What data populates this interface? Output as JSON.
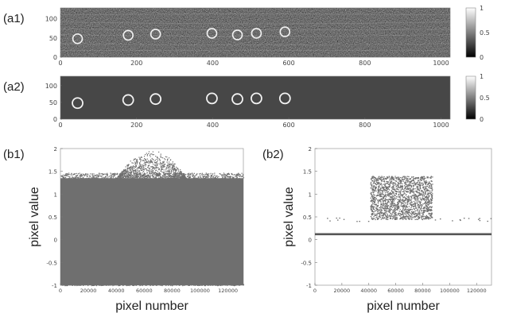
{
  "chart_data": [
    {
      "id": "a1",
      "panel_label": "(a1)",
      "type": "heatmap",
      "xlim": [
        0,
        1024
      ],
      "ylim": [
        0,
        128
      ],
      "xticks": [
        0,
        200,
        400,
        600,
        800,
        1000
      ],
      "yticks": [
        0,
        50,
        100
      ],
      "colorbar": {
        "ticks": [
          0,
          0.5,
          1
        ],
        "tick_labels": [
          "0",
          "0.5",
          "1"
        ]
      },
      "rings": [
        {
          "x": 45,
          "y": 48
        },
        {
          "x": 178,
          "y": 57
        },
        {
          "x": 250,
          "y": 60
        },
        {
          "x": 398,
          "y": 62
        },
        {
          "x": 465,
          "y": 58
        },
        {
          "x": 515,
          "y": 62
        },
        {
          "x": 590,
          "y": 66
        }
      ]
    },
    {
      "id": "a2",
      "panel_label": "(a2)",
      "type": "heatmap",
      "xlim": [
        0,
        1024
      ],
      "ylim": [
        0,
        128
      ],
      "xticks": [
        0,
        200,
        400,
        600,
        800,
        1000
      ],
      "yticks": [
        0,
        50,
        100
      ],
      "colorbar": {
        "ticks": [
          0,
          0.5,
          1
        ],
        "tick_labels": [
          "0",
          "0.5",
          "1"
        ]
      },
      "rings": [
        {
          "x": 45,
          "y": 48
        },
        {
          "x": 178,
          "y": 57
        },
        {
          "x": 250,
          "y": 60
        },
        {
          "x": 398,
          "y": 62
        },
        {
          "x": 465,
          "y": 60
        },
        {
          "x": 515,
          "y": 62
        },
        {
          "x": 590,
          "y": 62
        }
      ]
    },
    {
      "id": "b1",
      "panel_label": "(b1)",
      "type": "scatter",
      "xlabel": "pixel number",
      "ylabel": "pixel value",
      "xlim": [
        0,
        131072
      ],
      "ylim": [
        -1,
        2
      ],
      "xticks": [
        0,
        20000,
        40000,
        60000,
        80000,
        100000,
        120000
      ],
      "yticks": [
        -1,
        -0.5,
        0,
        0.5,
        1,
        1.5,
        2
      ],
      "ytick_labels": [
        "-1",
        "-0.5",
        "0",
        "0.5",
        "1",
        "1.5",
        "2"
      ],
      "dense_band": {
        "x_from": 0,
        "x_to": 131072,
        "y_from": -1,
        "y_to": 1.35
      },
      "raised_region": {
        "x_from": 40000,
        "x_to": 90000,
        "y_top": 2
      }
    },
    {
      "id": "b2",
      "panel_label": "(b2)",
      "type": "scatter",
      "xlabel": "pixel number",
      "ylabel": "pixel value",
      "xlim": [
        0,
        131072
      ],
      "ylim": [
        -1,
        2
      ],
      "xticks": [
        0,
        20000,
        40000,
        60000,
        80000,
        100000,
        120000
      ],
      "yticks": [
        -1,
        -0.5,
        0,
        0.5,
        1,
        1.5,
        2
      ],
      "ytick_labels": [
        "-1",
        "-0.5",
        "0",
        "0.5",
        "1",
        "1.5",
        "2"
      ],
      "baseline": 0.12,
      "cluster": {
        "x_from": 41000,
        "x_to": 87000,
        "y_from": 0.45,
        "y_to": 1.4
      },
      "sparse_level": 0.45
    }
  ],
  "colors": {
    "map_bg": "#474747",
    "scatter": "#6f6f6f",
    "baseline": "#555555",
    "ring": "#f2f2f2"
  }
}
